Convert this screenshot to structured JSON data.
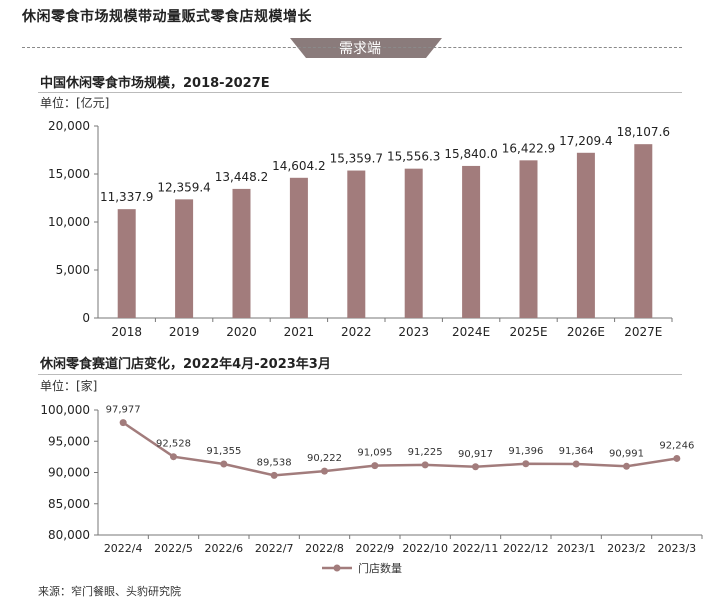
{
  "page": {
    "title": "休闲零食市场规模带动量贩式零食店规模增长",
    "banner": "需求端",
    "source": "来源：窄门餐眼、头豹研究院",
    "colors": {
      "bar": "#a27c7c",
      "line": "#a27c7c",
      "accent": "#8a6f6f"
    }
  },
  "chart1": {
    "title": "中国休闲零食市场规模，2018-2027E",
    "unit": "单位：[亿元]"
  },
  "chart2": {
    "title": "休闲零食赛道门店变化，2022年4月-2023年3月",
    "unit": "单位：[家]"
  },
  "chart_data": [
    {
      "type": "bar",
      "title": "中国休闲零食市场规模，2018-2027E",
      "ylabel": "单位：[亿元]",
      "categories": [
        "2018",
        "2019",
        "2020",
        "2021",
        "2022",
        "2023",
        "2024E",
        "2025E",
        "2026E",
        "2027E"
      ],
      "values": [
        11337.9,
        12359.4,
        13448.2,
        14604.2,
        15359.7,
        15556.3,
        15840.0,
        16422.9,
        17209.4,
        18107.6
      ],
      "labels": [
        "11,337.9",
        "12,359.4",
        "13,448.2",
        "14,604.2",
        "15,359.7",
        "15,556.3",
        "15,840.0",
        "16,422.9",
        "17,209.4",
        "18,107.6"
      ],
      "yticks": [
        "0",
        "5,000",
        "10,000",
        "15,000",
        "20,000"
      ],
      "ylim": [
        0,
        20000
      ],
      "grid": false
    },
    {
      "type": "line",
      "title": "休闲零食赛道门店变化，2022年4月-2023年3月",
      "ylabel": "单位：[家]",
      "categories": [
        "2022/4",
        "2022/5",
        "2022/6",
        "2022/7",
        "2022/8",
        "2022/9",
        "2022/10",
        "2022/11",
        "2022/12",
        "2023/1",
        "2023/2",
        "2023/3"
      ],
      "series": [
        {
          "name": "门店数量",
          "values": [
            97977,
            92528,
            91355,
            89538,
            90222,
            91095,
            91225,
            90917,
            91396,
            91364,
            90991,
            92246
          ],
          "labels": [
            "97,977",
            "92,528",
            "91,355",
            "89,538",
            "90,222",
            "91,095",
            "91,225",
            "90,917",
            "91,396",
            "91,364",
            "90,991",
            "92,246"
          ]
        }
      ],
      "yticks": [
        "80,000",
        "85,000",
        "90,000",
        "95,000",
        "100,000"
      ],
      "ylim": [
        80000,
        100000
      ],
      "legend": "bottom",
      "grid": false
    }
  ]
}
